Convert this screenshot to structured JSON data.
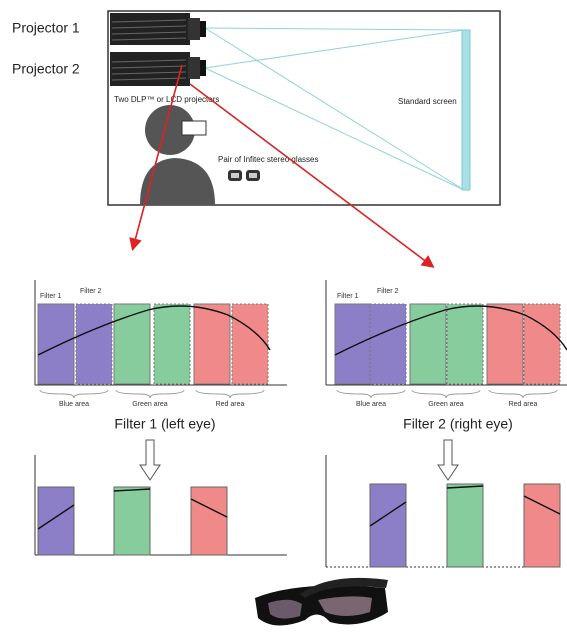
{
  "projectors": {
    "labels": [
      "Projector 1",
      "Projector 2"
    ],
    "caption": "Two DLP™ or LCD projectors",
    "screen": "Standard screen",
    "glasses": "Pair of Infitec stereo glasses"
  },
  "panels": [
    {
      "filters": [
        "Filter 1",
        "Filter 2"
      ],
      "areas": [
        "Blue area",
        "Green area",
        "Red area"
      ],
      "caption": "Filter 1 (left eye)"
    },
    {
      "filters": [
        "Filter 1",
        "Filter 2"
      ],
      "areas": [
        "Blue area",
        "Green area",
        "Red area"
      ],
      "caption": "Filter 2 (right eye)"
    }
  ]
}
